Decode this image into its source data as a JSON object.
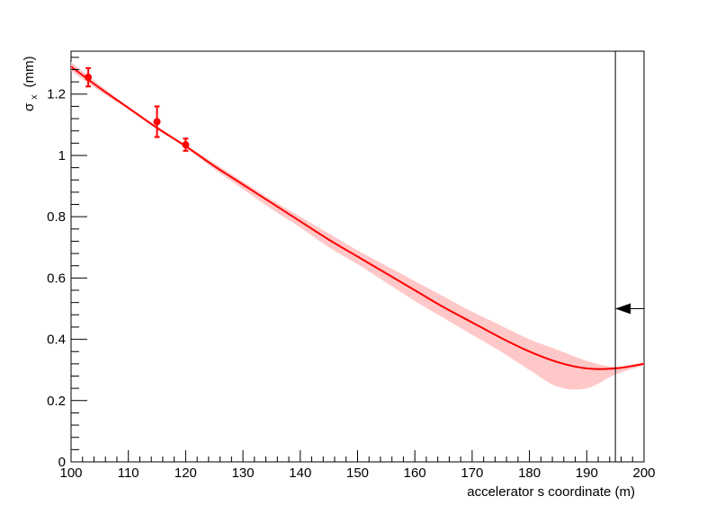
{
  "chart_data": {
    "type": "line",
    "title": "",
    "xlabel": "accelerator s coordinate (m)",
    "ylabel_main": "σ",
    "ylabel_sub": "x",
    "ylabel_unit": "(mm)",
    "xlim": [
      100,
      200
    ],
    "ylim": [
      0,
      1.34
    ],
    "x_ticks": [
      100,
      110,
      120,
      130,
      140,
      150,
      160,
      170,
      180,
      190,
      200
    ],
    "y_ticks": [
      0,
      0.2,
      0.4,
      0.6,
      0.8,
      1,
      1.2
    ],
    "x_tick_labels": [
      "100",
      "110",
      "120",
      "130",
      "140",
      "150",
      "160",
      "170",
      "180",
      "190",
      "200"
    ],
    "y_tick_labels": [
      "0",
      "0.2",
      "0.4",
      "0.6",
      "0.8",
      "1",
      "1.2"
    ],
    "grid": false,
    "colors": {
      "curve": "#ff0000",
      "band": "#ffc8c8",
      "points": "#ff0000",
      "marker": "#000000"
    },
    "fit_curve": {
      "x": [
        100,
        105,
        110,
        115,
        120,
        125,
        130,
        135,
        140,
        145,
        150,
        155,
        160,
        165,
        170,
        175,
        180,
        185,
        190,
        195,
        200
      ],
      "y": [
        1.29,
        1.22,
        1.155,
        1.09,
        1.03,
        0.965,
        0.905,
        0.845,
        0.785,
        0.725,
        0.67,
        0.615,
        0.56,
        0.505,
        0.455,
        0.405,
        0.36,
        0.325,
        0.305,
        0.305,
        0.32
      ]
    },
    "error_band": {
      "x": [
        100,
        105,
        110,
        115,
        120,
        125,
        130,
        135,
        140,
        145,
        150,
        155,
        160,
        165,
        170,
        175,
        180,
        185,
        190,
        195,
        200
      ],
      "upper": [
        1.305,
        1.23,
        1.16,
        1.095,
        1.035,
        0.975,
        0.915,
        0.855,
        0.8,
        0.745,
        0.69,
        0.64,
        0.59,
        0.54,
        0.49,
        0.445,
        0.4,
        0.365,
        0.33,
        0.31,
        0.325
      ],
      "lower": [
        1.275,
        1.21,
        1.15,
        1.085,
        1.025,
        0.955,
        0.89,
        0.825,
        0.765,
        0.7,
        0.645,
        0.585,
        0.525,
        0.47,
        0.415,
        0.36,
        0.3,
        0.245,
        0.24,
        0.285,
        0.315
      ]
    },
    "measurements": [
      {
        "x": 103,
        "y": 1.255,
        "yerr": 0.03
      },
      {
        "x": 115,
        "y": 1.11,
        "yerr": 0.05
      },
      {
        "x": 120,
        "y": 1.035,
        "yerr": 0.02
      }
    ],
    "vertical_line_x": 195,
    "arrow": {
      "x_tip": 195,
      "x_tail": 200,
      "y": 0.5,
      "direction": "left"
    }
  }
}
